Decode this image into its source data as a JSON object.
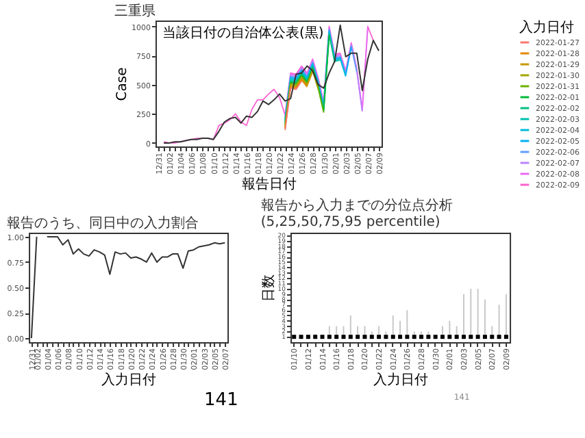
{
  "chart_data": [
    {
      "type": "line",
      "title": "三重県",
      "xlabel": "報告日付",
      "ylabel": "Case",
      "legend_title": "入力日付",
      "legend": "right",
      "annotations": [
        "当該日付の自治体公表(黒)"
      ],
      "categories": [
        "12/31",
        null,
        "01/02",
        null,
        "01/04",
        null,
        "01/06",
        null,
        "01/08",
        null,
        "01/10",
        null,
        "01/12",
        null,
        "01/14",
        null,
        "01/16",
        null,
        "01/18",
        null,
        "01/20",
        null,
        "01/22",
        null,
        "01/24",
        null,
        "01/26",
        null,
        "01/28",
        null,
        "01/30",
        null,
        "02/01",
        null,
        "02/03",
        null,
        "02/05",
        null,
        "02/07",
        null,
        "02/09"
      ],
      "ylim": [
        -30,
        1050
      ],
      "yticks": [
        0,
        250,
        500,
        750,
        1000
      ],
      "series": [
        {
          "name": "2022-01-27",
          "color": "#f8766d",
          "values": [
            null,
            null,
            null,
            null,
            null,
            null,
            null,
            null,
            null,
            null,
            null,
            null,
            null,
            null,
            null,
            null,
            null,
            null,
            null,
            null,
            null,
            null,
            null,
            110,
            470,
            460,
            530,
            null,
            null,
            null,
            null,
            null,
            null,
            null,
            null,
            null,
            null,
            null,
            null,
            null,
            null
          ]
        },
        {
          "name": "2022-01-28",
          "color": "#e58700",
          "values": [
            null,
            null,
            null,
            null,
            null,
            null,
            null,
            null,
            null,
            null,
            null,
            null,
            null,
            null,
            null,
            null,
            null,
            null,
            null,
            null,
            null,
            null,
            null,
            120,
            480,
            470,
            540,
            480,
            null,
            null,
            null,
            null,
            null,
            null,
            null,
            null,
            null,
            null,
            null,
            null,
            null
          ]
        },
        {
          "name": "2022-01-29",
          "color": "#c99800",
          "values": [
            null,
            null,
            null,
            null,
            null,
            null,
            null,
            null,
            null,
            null,
            null,
            null,
            null,
            null,
            null,
            null,
            null,
            null,
            null,
            null,
            null,
            null,
            null,
            130,
            490,
            480,
            550,
            490,
            610,
            null,
            null,
            null,
            null,
            null,
            null,
            null,
            null,
            null,
            null,
            null,
            null
          ]
        },
        {
          "name": "2022-01-30",
          "color": "#a3a500",
          "values": [
            null,
            null,
            null,
            null,
            null,
            null,
            null,
            null,
            null,
            null,
            null,
            null,
            null,
            null,
            null,
            null,
            null,
            null,
            null,
            null,
            null,
            null,
            null,
            140,
            500,
            490,
            560,
            500,
            620,
            460,
            null,
            null,
            null,
            null,
            null,
            null,
            null,
            null,
            null,
            null,
            null
          ]
        },
        {
          "name": "2022-01-31",
          "color": "#6bb100",
          "values": [
            null,
            null,
            null,
            null,
            null,
            null,
            null,
            null,
            null,
            null,
            null,
            null,
            null,
            null,
            null,
            null,
            null,
            null,
            null,
            null,
            null,
            null,
            null,
            150,
            510,
            500,
            570,
            510,
            630,
            470,
            260,
            null,
            null,
            null,
            null,
            null,
            null,
            null,
            null,
            null,
            null
          ]
        },
        {
          "name": "2022-02-01",
          "color": "#00ba38",
          "values": [
            null,
            null,
            null,
            null,
            null,
            null,
            null,
            null,
            null,
            null,
            null,
            null,
            null,
            null,
            null,
            null,
            null,
            null,
            null,
            null,
            null,
            null,
            null,
            160,
            520,
            510,
            580,
            520,
            640,
            480,
            270,
            920,
            null,
            null,
            null,
            null,
            null,
            null,
            null,
            null,
            null
          ]
        },
        {
          "name": "2022-02-02",
          "color": "#00bf7d",
          "values": [
            null,
            null,
            null,
            null,
            null,
            null,
            null,
            null,
            null,
            null,
            null,
            null,
            null,
            null,
            null,
            null,
            null,
            null,
            null,
            null,
            null,
            null,
            null,
            170,
            530,
            520,
            590,
            530,
            650,
            490,
            280,
            930,
            690,
            null,
            null,
            null,
            null,
            null,
            null,
            null,
            null
          ]
        },
        {
          "name": "2022-02-03",
          "color": "#00c0af",
          "values": [
            null,
            null,
            null,
            null,
            null,
            null,
            null,
            null,
            null,
            null,
            null,
            null,
            null,
            null,
            null,
            null,
            null,
            null,
            null,
            null,
            null,
            null,
            null,
            180,
            540,
            530,
            600,
            540,
            660,
            500,
            290,
            940,
            700,
            710,
            null,
            null,
            null,
            null,
            null,
            null,
            null
          ]
        },
        {
          "name": "2022-02-04",
          "color": "#00bcd8",
          "values": [
            null,
            null,
            null,
            null,
            null,
            null,
            null,
            null,
            null,
            null,
            null,
            null,
            null,
            null,
            null,
            null,
            null,
            null,
            null,
            null,
            null,
            null,
            null,
            190,
            550,
            540,
            610,
            550,
            670,
            510,
            300,
            950,
            710,
            720,
            570,
            null,
            null,
            null,
            null,
            null,
            null
          ]
        },
        {
          "name": "2022-02-05",
          "color": "#00b0f6",
          "values": [
            null,
            null,
            null,
            null,
            null,
            null,
            null,
            null,
            null,
            null,
            null,
            null,
            null,
            null,
            null,
            null,
            null,
            null,
            null,
            null,
            null,
            null,
            null,
            200,
            560,
            550,
            620,
            560,
            680,
            520,
            310,
            960,
            720,
            730,
            580,
            820,
            null,
            null,
            null,
            null,
            null
          ]
        },
        {
          "name": "2022-02-06",
          "color": "#619cff",
          "values": [
            null,
            null,
            null,
            null,
            null,
            null,
            null,
            null,
            null,
            null,
            null,
            null,
            null,
            null,
            null,
            null,
            null,
            null,
            null,
            null,
            null,
            null,
            null,
            210,
            570,
            560,
            630,
            570,
            690,
            530,
            320,
            970,
            730,
            740,
            590,
            830,
            610,
            null,
            null,
            null,
            null
          ]
        },
        {
          "name": "2022-02-07",
          "color": "#b983ff",
          "values": [
            null,
            null,
            null,
            null,
            null,
            null,
            null,
            null,
            null,
            null,
            null,
            null,
            null,
            null,
            null,
            null,
            null,
            null,
            null,
            null,
            null,
            null,
            null,
            220,
            580,
            570,
            640,
            580,
            700,
            540,
            330,
            980,
            740,
            750,
            600,
            840,
            620,
            270,
            null,
            null,
            null
          ]
        },
        {
          "name": "2022-02-08",
          "color": "#e76bf3",
          "values": [
            null,
            null,
            null,
            null,
            null,
            null,
            null,
            null,
            null,
            null,
            null,
            null,
            null,
            null,
            null,
            null,
            null,
            null,
            null,
            null,
            null,
            null,
            null,
            230,
            590,
            580,
            650,
            590,
            710,
            550,
            340,
            990,
            750,
            760,
            610,
            850,
            630,
            280,
            990,
            null,
            null
          ]
        },
        {
          "name": "2022-02-09",
          "color": "#fd61d1",
          "values": [
            null,
            10,
            0,
            0,
            10,
            20,
            30,
            40,
            40,
            40,
            30,
            150,
            170,
            200,
            250,
            180,
            150,
            290,
            370,
            370,
            420,
            460,
            390,
            240,
            600,
            590,
            660,
            600,
            720,
            560,
            350,
            1000,
            760,
            770,
            620,
            860,
            640,
            290,
            1000,
            880,
            null
          ]
        },
        {
          "color": "#333333",
          "values": [
            null,
            0,
            0,
            10,
            10,
            20,
            30,
            30,
            40,
            40,
            30,
            100,
            180,
            210,
            220,
            170,
            230,
            220,
            270,
            360,
            330,
            370,
            420,
            360,
            380,
            590,
            600,
            660,
            620,
            500,
            470,
            600,
            700,
            1010,
            740,
            770,
            770,
            450,
            720,
            880,
            790
          ]
        }
      ]
    },
    {
      "type": "line",
      "title": "報告のうち、同日中の入力割合",
      "xlabel": "入力日付",
      "annotations": [
        "141"
      ],
      "categories": [
        "12/31",
        "01/02",
        null,
        "01/04",
        null,
        "01/06",
        null,
        "01/08",
        null,
        "01/10",
        null,
        "01/12",
        null,
        "01/14",
        null,
        "01/16",
        null,
        "01/18",
        null,
        "01/20",
        null,
        "01/22",
        null,
        "01/24",
        null,
        "01/26",
        null,
        "01/28",
        null,
        "01/30",
        null,
        "02/01",
        null,
        "02/03",
        null,
        "02/05",
        null,
        "02/07"
      ],
      "series": [
        {
          "color": "#333333",
          "values": [
            0,
            1.0,
            null,
            1.0,
            1.0,
            1.0,
            0.92,
            0.97,
            0.83,
            0.88,
            0.83,
            0.81,
            0.87,
            0.85,
            0.82,
            0.63,
            0.85,
            0.83,
            0.84,
            0.79,
            0.8,
            0.78,
            0.75,
            0.84,
            0.75,
            0.8,
            0.8,
            0.83,
            0.83,
            0.69,
            0.86,
            0.87,
            0.9,
            0.91,
            0.92,
            0.94,
            0.93,
            0.94
          ]
        }
      ],
      "ylim": [
        -0.04,
        1.04
      ],
      "yticks": [
        {
          "value": 0,
          "label": "0.00"
        },
        {
          "value": 0.25,
          "label": "0.25"
        },
        {
          "value": 0.5,
          "label": "0.50"
        },
        {
          "value": 0.75,
          "label": "0.75"
        },
        {
          "value": 1,
          "label": "1.00"
        }
      ]
    },
    {
      "type": "scatter",
      "title": "報告から入力までの分位点分析(5,25,50,75,95 percentile)",
      "xlabel": "入力日付",
      "ylabel": "日数",
      "annotations": [
        "141"
      ],
      "marker": "square",
      "categories": [
        "01/10",
        null,
        "01/12",
        null,
        "01/14",
        null,
        "01/16",
        null,
        "01/18",
        null,
        "01/20",
        null,
        "01/22",
        null,
        "01/24",
        null,
        "01/26",
        null,
        "01/28",
        null,
        "01/30",
        null,
        "02/01",
        null,
        "02/03",
        null,
        "02/05",
        null,
        "02/07",
        null,
        "02/09"
      ],
      "ylim": [
        0,
        20.5
      ],
      "yticks": [
        1,
        2,
        3,
        4,
        5,
        6,
        7,
        8,
        9,
        10,
        11,
        12,
        13,
        14,
        15,
        16,
        17,
        18,
        19,
        20
      ],
      "series": [
        {
          "color": "#000000",
          "values": [
            1,
            1,
            1,
            1,
            1,
            1,
            1,
            1,
            1,
            1,
            1,
            1,
            1,
            1,
            1,
            1,
            1,
            1,
            1,
            1,
            1,
            1,
            1,
            1,
            1,
            1,
            1,
            1,
            1,
            1,
            1
          ],
          "errors": [
            null,
            null,
            null,
            [
              1,
              1.5
            ],
            null,
            [
              1,
              3
            ],
            [
              1,
              3
            ],
            [
              1,
              3
            ],
            [
              1,
              5
            ],
            [
              1,
              3
            ],
            [
              1,
              3
            ],
            [
              1,
              2
            ],
            [
              1,
              3
            ],
            [
              1,
              2
            ],
            [
              1,
              5
            ],
            [
              1,
              4
            ],
            [
              1,
              6
            ],
            [
              1,
              2
            ],
            [
              1,
              2
            ],
            [
              1,
              2
            ],
            null,
            [
              1,
              3
            ],
            [
              1,
              4
            ],
            [
              1,
              3
            ],
            [
              1,
              9
            ],
            [
              1,
              10
            ],
            [
              1,
              10
            ],
            [
              1,
              8
            ],
            [
              1,
              3
            ],
            [
              1,
              7
            ],
            [
              1,
              9
            ]
          ]
        }
      ]
    }
  ]
}
